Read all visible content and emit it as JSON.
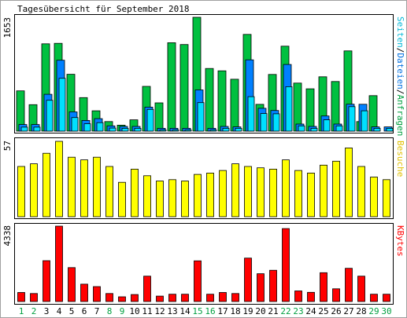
{
  "chart_data": [
    {
      "type": "bar",
      "title": "Tagesübersicht für September 2018",
      "max_label": "1653",
      "legend": {
        "seiten": "Seiten",
        "dateien": "Dateien",
        "anfragen": "Anfragen",
        "separator": "/"
      },
      "categories": [
        "1",
        "2",
        "3",
        "4",
        "5",
        "6",
        "7",
        "8",
        "9",
        "10",
        "11",
        "12",
        "13",
        "14",
        "15",
        "16",
        "17",
        "18",
        "19",
        "20",
        "21",
        "22",
        "23",
        "24",
        "25",
        "26",
        "27",
        "28",
        "29",
        "30"
      ],
      "series": [
        {
          "name": "Anfragen",
          "color": "#00c040",
          "values": [
            585,
            384,
            1268,
            1275,
            825,
            487,
            295,
            139,
            87,
            164,
            650,
            410,
            1284,
            1257,
            1653,
            910,
            876,
            753,
            1405,
            389,
            823,
            1233,
            698,
            614,
            789,
            721,
            1165,
            139,
            515,
            0
          ]
        },
        {
          "name": "Dateien",
          "color": "#0080ff",
          "values": [
            96,
            96,
            535,
            1029,
            279,
            155,
            181,
            76,
            68,
            68,
            349,
            41,
            41,
            41,
            599,
            41,
            68,
            61,
            1035,
            332,
            300,
            968,
            103,
            68,
            220,
            103,
            391,
            390,
            62,
            62
          ]
        },
        {
          "name": "Seiten",
          "color": "#00e0ff",
          "values": [
            58,
            58,
            448,
            767,
            197,
            107,
            123,
            44,
            41,
            41,
            316,
            17,
            17,
            17,
            414,
            17,
            41,
            41,
            501,
            255,
            252,
            645,
            76,
            41,
            164,
            76,
            356,
            295,
            41,
            41
          ]
        }
      ],
      "ylim": [
        0,
        1653
      ]
    },
    {
      "type": "bar",
      "max_label": "57",
      "legend": {
        "besuche": "Besuche"
      },
      "categories": [
        "1",
        "2",
        "3",
        "4",
        "5",
        "6",
        "7",
        "8",
        "9",
        "10",
        "11",
        "12",
        "13",
        "14",
        "15",
        "16",
        "17",
        "18",
        "19",
        "20",
        "21",
        "22",
        "23",
        "24",
        "25",
        "26",
        "27",
        "28",
        "29",
        "30"
      ],
      "series": [
        {
          "name": "Besuche",
          "color": "#ffff00",
          "values": [
            38,
            40,
            48,
            57,
            45,
            43,
            45,
            38,
            26,
            36,
            31,
            27,
            28,
            27,
            32,
            33,
            35,
            40,
            38,
            37,
            36,
            43,
            35,
            33,
            39,
            42,
            52,
            38,
            30,
            28
          ]
        }
      ],
      "ylim": [
        0,
        57
      ]
    },
    {
      "type": "bar",
      "max_label": "4338",
      "legend": {
        "kbytes": "KBytes"
      },
      "categories": [
        "1",
        "2",
        "3",
        "4",
        "5",
        "6",
        "7",
        "8",
        "9",
        "10",
        "11",
        "12",
        "13",
        "14",
        "15",
        "16",
        "17",
        "18",
        "19",
        "20",
        "21",
        "22",
        "23",
        "24",
        "25",
        "26",
        "27",
        "28",
        "29",
        "30"
      ],
      "series": [
        {
          "name": "KBytes",
          "color": "#ff0000",
          "values": [
            520,
            460,
            2350,
            4338,
            1950,
            1000,
            860,
            460,
            270,
            400,
            1460,
            310,
            420,
            420,
            2340,
            420,
            520,
            460,
            2500,
            1600,
            1800,
            4200,
            610,
            530,
            1660,
            730,
            1910,
            1460,
            420,
            420
          ]
        }
      ],
      "ylim": [
        0,
        4338
      ]
    }
  ],
  "x_labels": [
    "1",
    "2",
    "3",
    "4",
    "5",
    "6",
    "7",
    "8",
    "9",
    "10",
    "11",
    "12",
    "13",
    "14",
    "15",
    "16",
    "17",
    "18",
    "19",
    "20",
    "21",
    "22",
    "23",
    "24",
    "25",
    "26",
    "27",
    "28",
    "29",
    "30"
  ],
  "weekend_days": [
    "1",
    "2",
    "8",
    "9",
    "15",
    "16",
    "22",
    "23",
    "29",
    "30"
  ],
  "colors": {
    "weekday_label": "#000000",
    "weekend_label": "#00a040",
    "frame": "#000000",
    "panel_bg": "#ffffff"
  }
}
